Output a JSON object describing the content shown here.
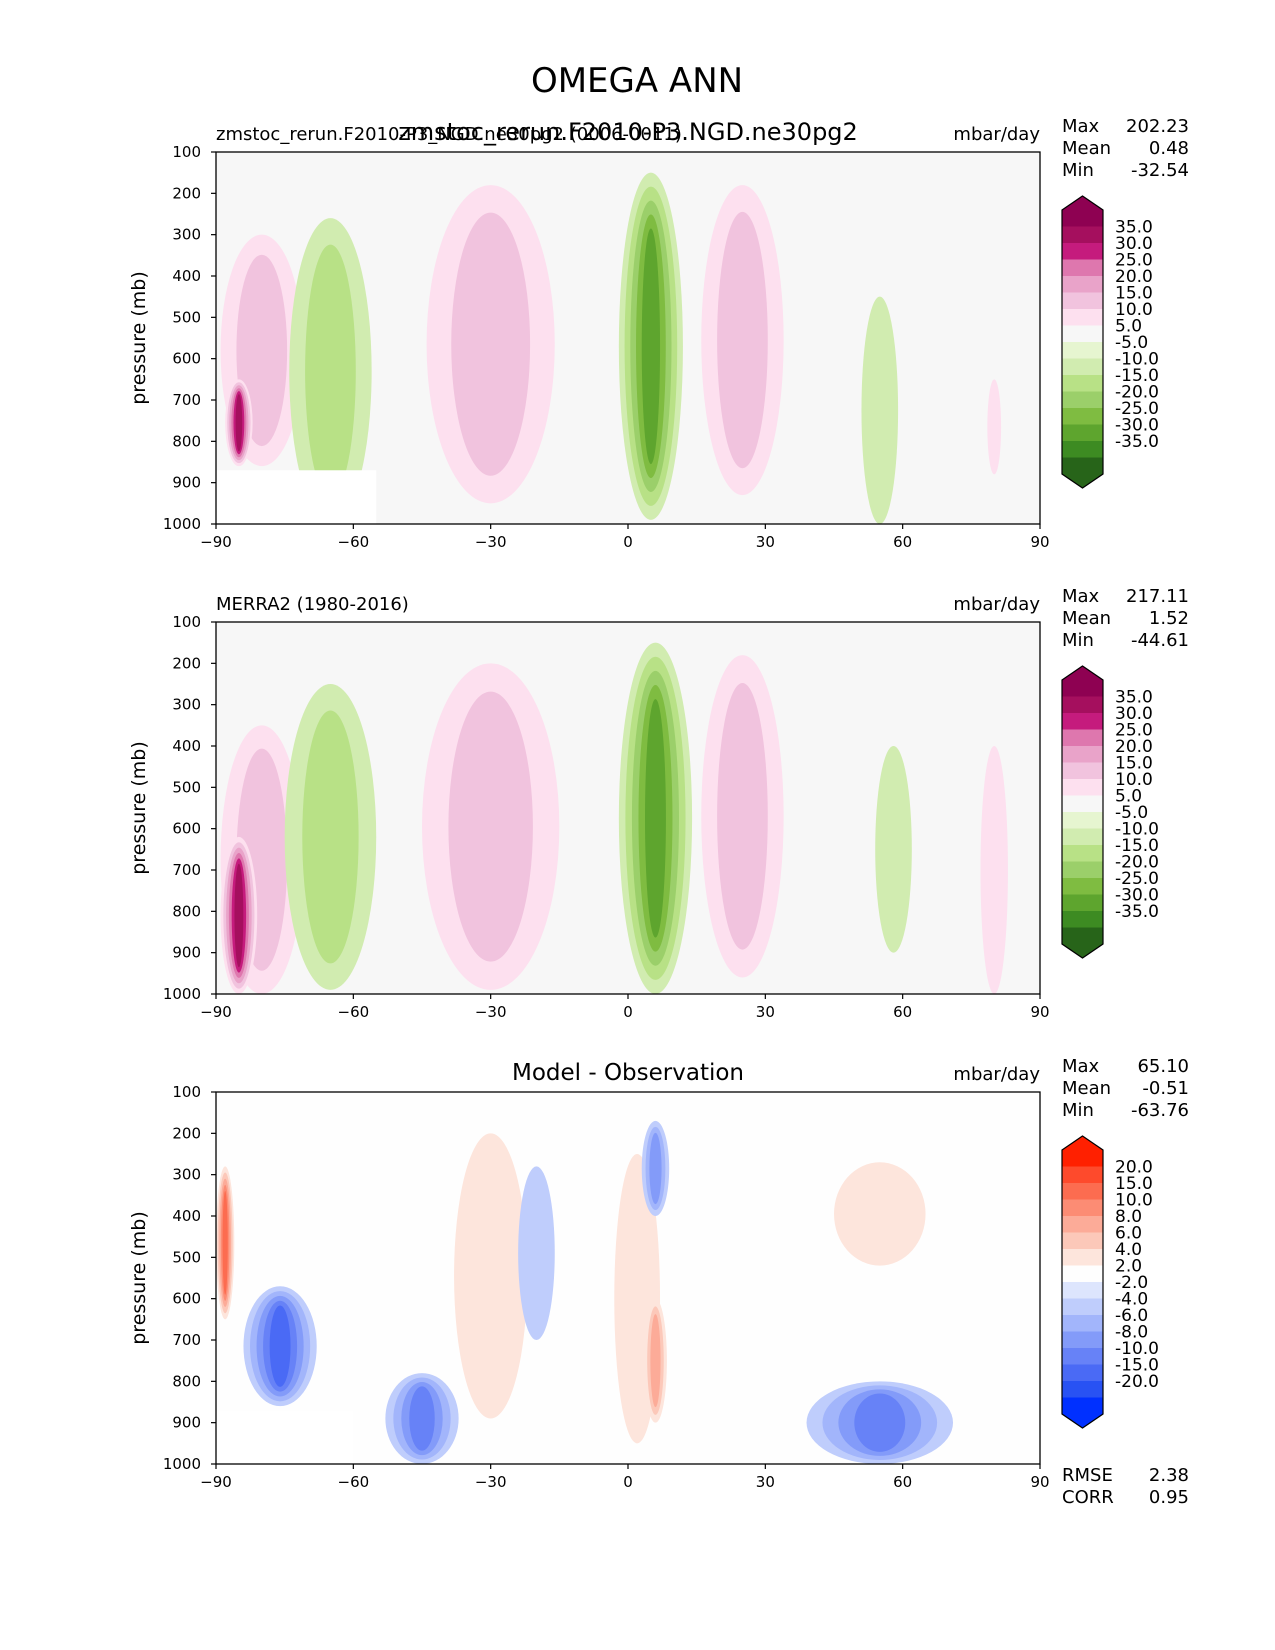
{
  "figure": {
    "title": "OMEGA ANN"
  },
  "chart_data": [
    {
      "type": "contour",
      "left_title": "zmstoc_rerun.F2010-P3_NGD.ne30pg2 (0006-0011)",
      "center_title": "zmstoc_rerun.F2010-P3.NGD.ne30pg2",
      "units": "mbar/day",
      "xlabel": "",
      "ylabel": "pressure (mb)",
      "xlim": [
        -90,
        90
      ],
      "ylim": [
        1000,
        100
      ],
      "xticks": [
        "−90",
        "−60",
        "−30",
        "0",
        "30",
        "60",
        "90"
      ],
      "yticks": [
        "100",
        "200",
        "300",
        "400",
        "500",
        "600",
        "700",
        "800",
        "900",
        "1000"
      ],
      "stats": [
        {
          "label": "Max",
          "value": "202.23"
        },
        {
          "label": "Mean",
          "value": "0.48"
        },
        {
          "label": "Min",
          "value": "-32.54"
        }
      ],
      "colorbar": {
        "labels": [
          "35.0",
          "30.0",
          "25.0",
          "20.0",
          "15.0",
          "10.0",
          "5.0",
          "-5.0",
          "-10.0",
          "-15.0",
          "-20.0",
          "-25.0",
          "-30.0",
          "-35.0"
        ],
        "colors": [
          "#8e0152",
          "#a50f5e",
          "#c51b7d",
          "#de77ae",
          "#e9a3c9",
          "#f1c3de",
          "#fde0ef",
          "#f7f7f7",
          "#e6f5d0",
          "#d1ecb0",
          "#b8e186",
          "#9bcf6a",
          "#7fbc41",
          "#5ea52e",
          "#3d8b22",
          "#276419"
        ],
        "under_color": "#276419",
        "over_color": "#8e0152"
      },
      "features": [
        {
          "lat": -30,
          "p_top": 180,
          "p_bot": 950,
          "half_width": 14,
          "level": 2
        },
        {
          "lat": 25,
          "p_top": 180,
          "p_bot": 930,
          "half_width": 9,
          "level": 2
        },
        {
          "lat": -80,
          "p_top": 300,
          "p_bot": 860,
          "half_width": 9,
          "level": 2
        },
        {
          "lat": -85,
          "p_top": 650,
          "p_bot": 860,
          "half_width": 3,
          "level": 6
        },
        {
          "lat": -65,
          "p_top": 260,
          "p_bot": 1000,
          "half_width": 9,
          "level": -2
        },
        {
          "lat": 5,
          "p_top": 150,
          "p_bot": 990,
          "half_width": 7,
          "level": -5
        },
        {
          "lat": 55,
          "p_top": 450,
          "p_bot": 1000,
          "half_width": 4,
          "level": -1
        },
        {
          "lat": 80,
          "p_top": 650,
          "p_bot": 880,
          "half_width": 1.5,
          "level": 1
        }
      ],
      "mask": {
        "lat_max": -55,
        "p_top": 870
      }
    },
    {
      "type": "contour",
      "left_title": "MERRA2 (1980-2016)",
      "center_title": "",
      "units": "mbar/day",
      "xlabel": "",
      "ylabel": "pressure (mb)",
      "xlim": [
        -90,
        90
      ],
      "ylim": [
        1000,
        100
      ],
      "xticks": [
        "−90",
        "−60",
        "−30",
        "0",
        "30",
        "60",
        "90"
      ],
      "yticks": [
        "100",
        "200",
        "300",
        "400",
        "500",
        "600",
        "700",
        "800",
        "900",
        "1000"
      ],
      "stats": [
        {
          "label": "Max",
          "value": "217.11"
        },
        {
          "label": "Mean",
          "value": "1.52"
        },
        {
          "label": "Min",
          "value": "-44.61"
        }
      ],
      "colorbar": {
        "labels": [
          "35.0",
          "30.0",
          "25.0",
          "20.0",
          "15.0",
          "10.0",
          "5.0",
          "-5.0",
          "-10.0",
          "-15.0",
          "-20.0",
          "-25.0",
          "-30.0",
          "-35.0"
        ],
        "colors": [
          "#8e0152",
          "#a50f5e",
          "#c51b7d",
          "#de77ae",
          "#e9a3c9",
          "#f1c3de",
          "#fde0ef",
          "#f7f7f7",
          "#e6f5d0",
          "#d1ecb0",
          "#b8e186",
          "#9bcf6a",
          "#7fbc41",
          "#5ea52e",
          "#3d8b22",
          "#276419"
        ],
        "under_color": "#276419",
        "over_color": "#8e0152"
      },
      "features": [
        {
          "lat": -30,
          "p_top": 200,
          "p_bot": 990,
          "half_width": 15,
          "level": 2
        },
        {
          "lat": 25,
          "p_top": 180,
          "p_bot": 960,
          "half_width": 9,
          "level": 2
        },
        {
          "lat": -80,
          "p_top": 350,
          "p_bot": 1000,
          "half_width": 9,
          "level": 2
        },
        {
          "lat": -85,
          "p_top": 620,
          "p_bot": 1000,
          "half_width": 4,
          "level": 6
        },
        {
          "lat": -65,
          "p_top": 250,
          "p_bot": 990,
          "half_width": 10,
          "level": -2
        },
        {
          "lat": 6,
          "p_top": 150,
          "p_bot": 1000,
          "half_width": 8,
          "level": -5
        },
        {
          "lat": 58,
          "p_top": 400,
          "p_bot": 900,
          "half_width": 4,
          "level": -1
        },
        {
          "lat": 80,
          "p_top": 400,
          "p_bot": 1000,
          "half_width": 3,
          "level": 1
        }
      ],
      "mask": null
    },
    {
      "type": "contour",
      "left_title": "",
      "center_title": "Model - Observation",
      "units": "mbar/day",
      "xlabel": "",
      "ylabel": "pressure (mb)",
      "xlim": [
        -90,
        90
      ],
      "ylim": [
        1000,
        100
      ],
      "xticks": [
        "−90",
        "−60",
        "−30",
        "0",
        "30",
        "60",
        "90"
      ],
      "yticks": [
        "100",
        "200",
        "300",
        "400",
        "500",
        "600",
        "700",
        "800",
        "900",
        "1000"
      ],
      "stats": [
        {
          "label": "Max",
          "value": "65.10"
        },
        {
          "label": "Mean",
          "value": "-0.51"
        },
        {
          "label": "Min",
          "value": "-63.76"
        }
      ],
      "extra_stats": [
        {
          "label": "RMSE",
          "value": "2.38"
        },
        {
          "label": "CORR",
          "value": "0.95"
        }
      ],
      "colorbar": {
        "labels": [
          "20.0",
          "15.0",
          "10.0",
          "8.0",
          "6.0",
          "4.0",
          "2.0",
          "-2.0",
          "-4.0",
          "-6.0",
          "-8.0",
          "-10.0",
          "-15.0",
          "-20.0"
        ],
        "colors": [
          "#ff2000",
          "#fe4a2c",
          "#fc6c50",
          "#fc8c74",
          "#fcab98",
          "#fcc8b9",
          "#fde5dc",
          "#fefefe",
          "#dde5fd",
          "#bfcdfc",
          "#a2b5fb",
          "#839bf9",
          "#6782f7",
          "#4a6af5",
          "#2852f3",
          "#0030ff"
        ],
        "under_color": "#0030ff",
        "over_color": "#ff2000"
      },
      "features": [
        {
          "lat": -88,
          "p_top": 280,
          "p_bot": 650,
          "half_width": 2,
          "level": 5
        },
        {
          "lat": -76,
          "p_top": 570,
          "p_bot": 860,
          "half_width": 8,
          "level": -5
        },
        {
          "lat": -30,
          "p_top": 200,
          "p_bot": 890,
          "half_width": 8,
          "level": 1
        },
        {
          "lat": -20,
          "p_top": 280,
          "p_bot": 700,
          "half_width": 4,
          "level": -1
        },
        {
          "lat": 2,
          "p_top": 250,
          "p_bot": 950,
          "half_width": 5,
          "level": 1
        },
        {
          "lat": 6,
          "p_top": 170,
          "p_bot": 400,
          "half_width": 3,
          "level": -3
        },
        {
          "lat": 6,
          "p_top": 600,
          "p_bot": 900,
          "half_width": 2.5,
          "level": 3
        },
        {
          "lat": -45,
          "p_top": 780,
          "p_bot": 1000,
          "half_width": 8,
          "level": -4
        },
        {
          "lat": 55,
          "p_top": 800,
          "p_bot": 1000,
          "half_width": 16,
          "level": -4
        },
        {
          "lat": 55,
          "p_top": 270,
          "p_bot": 520,
          "half_width": 10,
          "level": 1
        }
      ],
      "mask": {
        "lat_max": -60,
        "p_top": 870
      }
    }
  ]
}
